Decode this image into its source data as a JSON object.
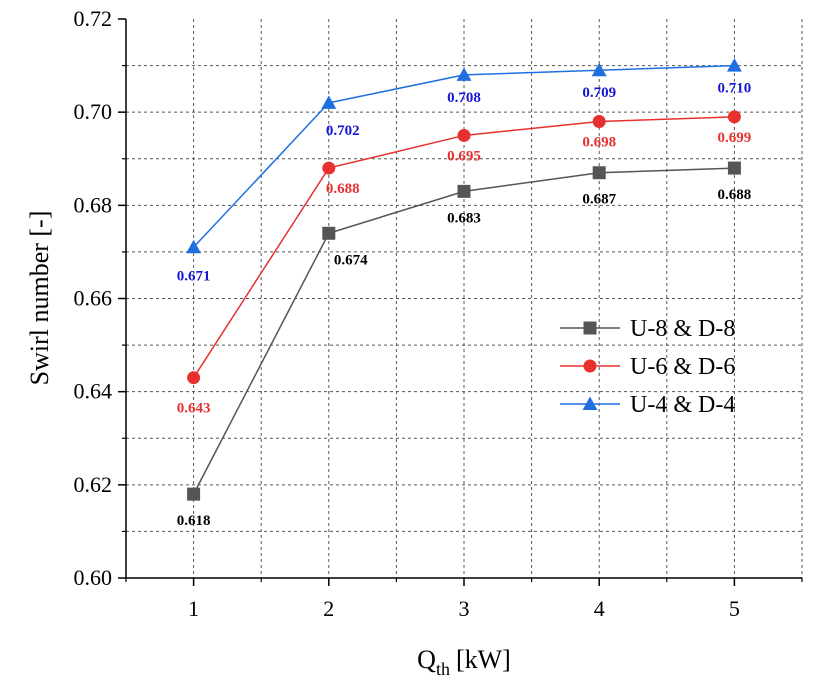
{
  "chart_data": {
    "type": "line",
    "title": "",
    "xlabel": "Q",
    "xlabel_subscript": "th",
    "xlabel_unit": "[kW]",
    "ylabel": "Swirl number [-]",
    "x": [
      1,
      2,
      3,
      4,
      5
    ],
    "xlim": [
      0.5,
      5.5
    ],
    "ylim": [
      0.6,
      0.72
    ],
    "xticks": [
      "1",
      "2",
      "3",
      "4",
      "5"
    ],
    "yticks": [
      "0.60",
      "0.62",
      "0.64",
      "0.66",
      "0.68",
      "0.70",
      "0.72"
    ],
    "grid": true,
    "legend_position": "center-right",
    "series": [
      {
        "name": "U-8 & D-8",
        "color": "#555555",
        "label_color": "#000000",
        "marker": "square",
        "values": [
          0.618,
          0.674,
          0.683,
          0.687,
          0.688
        ],
        "labels": [
          "0.618",
          "0.674",
          "0.683",
          "0.687",
          "0.688"
        ]
      },
      {
        "name": "U-6 & D-6",
        "color": "#e8302f",
        "label_color": "#e8302f",
        "marker": "circle",
        "values": [
          0.643,
          0.688,
          0.695,
          0.698,
          0.699
        ],
        "labels": [
          "0.643",
          "0.688",
          "0.695",
          "0.698",
          "0.699"
        ]
      },
      {
        "name": "U-4 & D-4",
        "color": "#1f6fe0",
        "label_color": "#1515d6",
        "marker": "triangle",
        "values": [
          0.671,
          0.702,
          0.708,
          0.709,
          0.71
        ],
        "labels": [
          "0.671",
          "0.702",
          "0.708",
          "0.709",
          "0.710"
        ]
      }
    ]
  }
}
